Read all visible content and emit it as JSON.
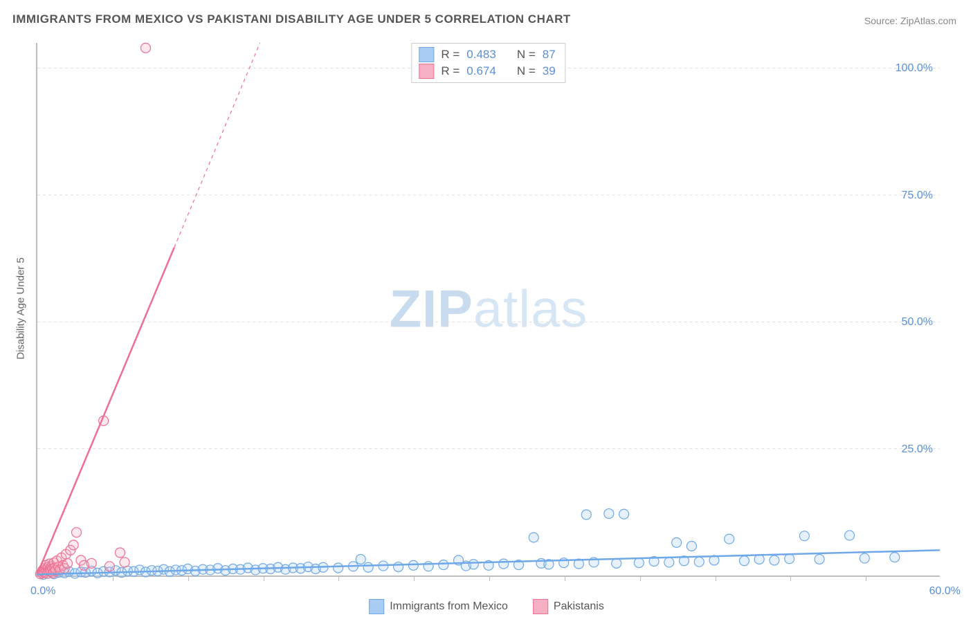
{
  "title": "IMMIGRANTS FROM MEXICO VS PAKISTANI DISABILITY AGE UNDER 5 CORRELATION CHART",
  "source_label": "Source: ",
  "source_name": "ZipAtlas.com",
  "y_axis_title": "Disability Age Under 5",
  "watermark": {
    "bold": "ZIP",
    "light": "atlas"
  },
  "chart": {
    "type": "scatter-with-regression",
    "background_color": "#ffffff",
    "grid_color": "#dddddd",
    "axis_color": "#bdbdbd",
    "tick_label_color": "#5a8fd6",
    "axis_title_color": "#666666",
    "title_color": "#555555",
    "xlim": [
      0,
      60
    ],
    "ylim": [
      0,
      105
    ],
    "x_origin_label": "0.0%",
    "x_max_label": "60.0%",
    "y_ticks": [
      {
        "v": 25,
        "label": "25.0%"
      },
      {
        "v": 50,
        "label": "50.0%"
      },
      {
        "v": 75,
        "label": "75.0%"
      },
      {
        "v": 100,
        "label": "100.0%"
      }
    ],
    "x_minor_ticks": [
      5,
      10,
      15,
      20,
      25,
      30,
      35,
      40,
      45,
      50,
      55
    ],
    "marker_radius": 7,
    "marker_stroke_width": 1.2,
    "marker_fill_opacity": 0.28,
    "line_width": 2.5,
    "series": [
      {
        "key": "mexico",
        "label": "Immigrants from Mexico",
        "color_stroke": "#6fa8e8",
        "color_fill": "#a9cdf2",
        "R": "0.483",
        "N": "87",
        "regression": {
          "from": [
            0,
            0.2
          ],
          "to": [
            60,
            5.0
          ],
          "dash_from_x": null
        },
        "points": [
          [
            0.4,
            0.2
          ],
          [
            0.7,
            0.4
          ],
          [
            1.1,
            0.3
          ],
          [
            1.4,
            0.6
          ],
          [
            1.8,
            0.5
          ],
          [
            2.1,
            0.8
          ],
          [
            2.5,
            0.4
          ],
          [
            2.9,
            0.7
          ],
          [
            3.2,
            0.6
          ],
          [
            3.6,
            0.9
          ],
          [
            4.0,
            0.5
          ],
          [
            4.4,
            0.8
          ],
          [
            4.8,
            0.7
          ],
          [
            5.2,
            1.0
          ],
          [
            5.6,
            0.6
          ],
          [
            6.0,
            0.9
          ],
          [
            6.4,
            0.8
          ],
          [
            6.8,
            1.1
          ],
          [
            7.2,
            0.7
          ],
          [
            7.6,
            1.0
          ],
          [
            8.0,
            0.9
          ],
          [
            8.4,
            1.2
          ],
          [
            8.8,
            0.8
          ],
          [
            9.2,
            1.1
          ],
          [
            9.6,
            1.0
          ],
          [
            10.0,
            1.3
          ],
          [
            10.5,
            0.9
          ],
          [
            11.0,
            1.2
          ],
          [
            11.5,
            1.1
          ],
          [
            12.0,
            1.4
          ],
          [
            12.5,
            1.0
          ],
          [
            13.0,
            1.3
          ],
          [
            13.5,
            1.2
          ],
          [
            14.0,
            1.5
          ],
          [
            14.5,
            1.1
          ],
          [
            15.0,
            1.4
          ],
          [
            15.5,
            1.3
          ],
          [
            16.0,
            1.6
          ],
          [
            16.5,
            1.2
          ],
          [
            17.0,
            1.5
          ],
          [
            17.5,
            1.4
          ],
          [
            18.0,
            1.7
          ],
          [
            18.5,
            1.3
          ],
          [
            19.0,
            1.6
          ],
          [
            20.0,
            1.5
          ],
          [
            21.0,
            1.8
          ],
          [
            21.5,
            3.2
          ],
          [
            22.0,
            1.6
          ],
          [
            23.0,
            1.9
          ],
          [
            24.0,
            1.7
          ],
          [
            25.0,
            2.0
          ],
          [
            26.0,
            1.8
          ],
          [
            27.0,
            2.1
          ],
          [
            28.0,
            3.0
          ],
          [
            28.5,
            1.9
          ],
          [
            29.0,
            2.2
          ],
          [
            30.0,
            2.0
          ],
          [
            31.0,
            2.3
          ],
          [
            32.0,
            2.1
          ],
          [
            33.0,
            7.5
          ],
          [
            33.5,
            2.4
          ],
          [
            34.0,
            2.2
          ],
          [
            35.0,
            2.5
          ],
          [
            36.0,
            2.3
          ],
          [
            36.5,
            12.0
          ],
          [
            37.0,
            2.6
          ],
          [
            38.0,
            12.2
          ],
          [
            38.5,
            2.4
          ],
          [
            39.0,
            12.1
          ],
          [
            40.0,
            2.5
          ],
          [
            41.0,
            2.8
          ],
          [
            42.0,
            2.6
          ],
          [
            42.5,
            6.5
          ],
          [
            43.0,
            2.9
          ],
          [
            43.5,
            5.8
          ],
          [
            44.0,
            2.7
          ],
          [
            45.0,
            3.0
          ],
          [
            46.0,
            7.2
          ],
          [
            47.0,
            2.9
          ],
          [
            48.0,
            3.2
          ],
          [
            49.0,
            3.0
          ],
          [
            50.0,
            3.3
          ],
          [
            51.0,
            7.8
          ],
          [
            52.0,
            3.2
          ],
          [
            54.0,
            7.9
          ],
          [
            55.0,
            3.4
          ],
          [
            57.0,
            3.6
          ]
        ]
      },
      {
        "key": "pakistan",
        "label": "Pakistanis",
        "color_stroke": "#ef6f92",
        "color_fill": "#f6b0c3",
        "R": "0.674",
        "N": "39",
        "regression": {
          "from": [
            0,
            0.3
          ],
          "to": [
            14.8,
            105
          ],
          "dash_from_x": 9.1
        },
        "points": [
          [
            0.2,
            0.3
          ],
          [
            0.3,
            0.5
          ],
          [
            0.35,
            1.0
          ],
          [
            0.4,
            0.7
          ],
          [
            0.45,
            1.4
          ],
          [
            0.5,
            0.6
          ],
          [
            0.55,
            2.0
          ],
          [
            0.6,
            1.1
          ],
          [
            0.65,
            0.4
          ],
          [
            0.7,
            1.6
          ],
          [
            0.75,
            0.9
          ],
          [
            0.8,
            2.3
          ],
          [
            0.85,
            1.2
          ],
          [
            0.9,
            0.8
          ],
          [
            0.95,
            1.8
          ],
          [
            1.0,
            1.3
          ],
          [
            1.05,
            0.5
          ],
          [
            1.1,
            2.5
          ],
          [
            1.15,
            1.5
          ],
          [
            1.2,
            1.0
          ],
          [
            1.3,
            2.9
          ],
          [
            1.4,
            1.7
          ],
          [
            1.5,
            1.1
          ],
          [
            1.6,
            3.5
          ],
          [
            1.7,
            2.0
          ],
          [
            1.8,
            1.4
          ],
          [
            1.9,
            4.2
          ],
          [
            2.0,
            2.4
          ],
          [
            2.2,
            5.0
          ],
          [
            2.4,
            6.0
          ],
          [
            2.6,
            8.5
          ],
          [
            2.9,
            3.0
          ],
          [
            3.1,
            2.0
          ],
          [
            3.6,
            2.4
          ],
          [
            4.4,
            30.5
          ],
          [
            4.8,
            1.8
          ],
          [
            5.5,
            4.5
          ],
          [
            5.8,
            2.6
          ],
          [
            7.2,
            104
          ]
        ]
      }
    ]
  },
  "stats_legend": {
    "r_label": "R =",
    "n_label": "N ="
  }
}
